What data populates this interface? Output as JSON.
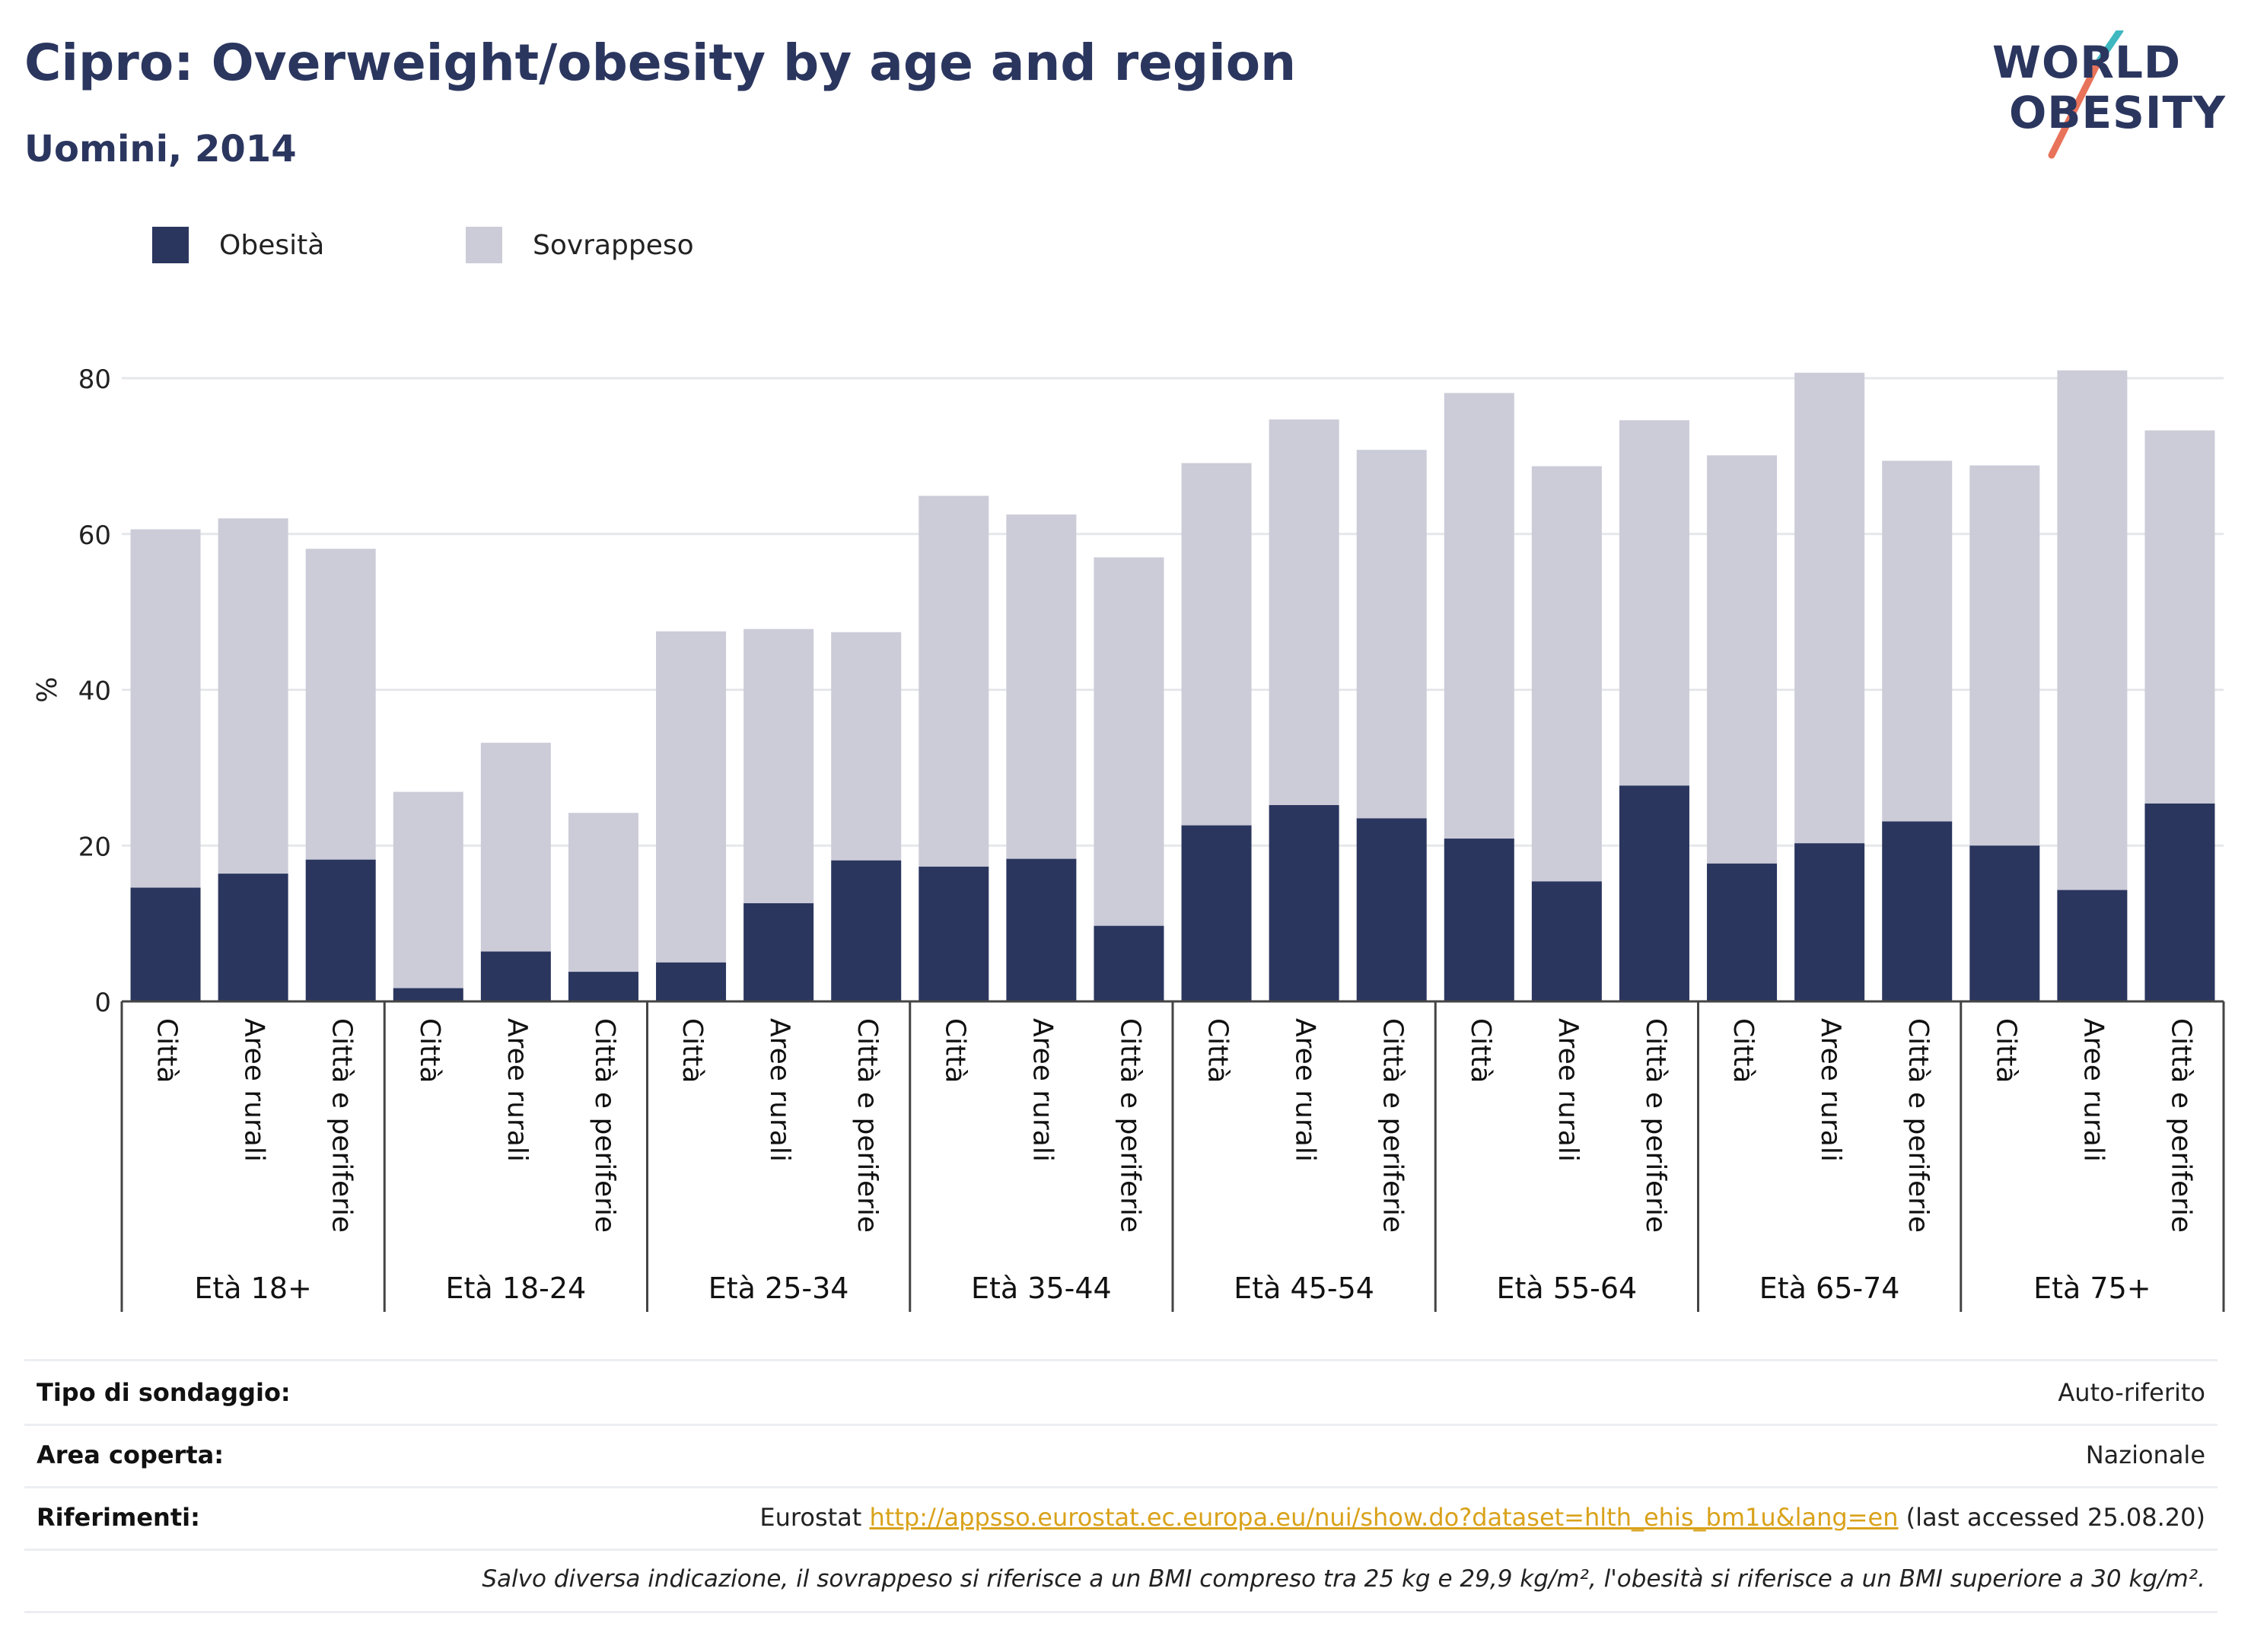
{
  "header": {
    "title": "Cipro: Overweight/obesity by age and region",
    "subtitle": "Uomini, 2014"
  },
  "logo": {
    "line1": "WORLD",
    "line2": "OBESITY",
    "colors": {
      "text": "#2b365f",
      "slash_top": "#3fb8c0",
      "slash_bottom": "#e8735a"
    }
  },
  "colors": {
    "obesity": "#2b365f",
    "overweight": "#cbccd8",
    "grid": "#e6e7eb",
    "axis": "#444444",
    "link": "#d9a21b"
  },
  "chart_data": {
    "type": "bar",
    "stacked": true,
    "ylabel": "%",
    "ylim": [
      0,
      90
    ],
    "yticks": [
      0,
      20,
      40,
      60,
      80
    ],
    "grid": true,
    "legend_position": "top-left",
    "groups": [
      "Età 18+",
      "Età 18-24",
      "Età 25-34",
      "Età 35-44",
      "Età 45-54",
      "Età 55-64",
      "Età 65-74",
      "Età 75+"
    ],
    "subcategories": [
      "Città",
      "Aree rurali",
      "Città e periferie"
    ],
    "series": [
      {
        "name": "Obesità",
        "values": [
          14.6,
          16.4,
          18.2,
          1.7,
          6.4,
          3.8,
          5.0,
          12.6,
          18.1,
          17.3,
          18.3,
          9.7,
          22.6,
          25.2,
          23.5,
          20.9,
          15.4,
          27.7,
          17.7,
          20.3,
          23.1,
          20.0,
          14.3,
          25.4
        ]
      },
      {
        "name": "Sovrappeso",
        "values": [
          46.0,
          45.6,
          39.9,
          25.2,
          26.8,
          20.4,
          42.5,
          35.2,
          29.3,
          47.6,
          44.2,
          47.3,
          46.5,
          49.5,
          47.3,
          57.2,
          53.3,
          46.9,
          52.4,
          60.4,
          46.3,
          48.8,
          66.7,
          47.9
        ]
      }
    ]
  },
  "info": {
    "survey_type_label": "Tipo di sondaggio:",
    "survey_type_value": "Auto-riferito",
    "coverage_label": "Area coperta:",
    "coverage_value": "Nazionale",
    "references_label": "Riferimenti:",
    "references_source": "Eurostat",
    "references_link": "http://appsso.eurostat.ec.europa.eu/nui/show.do?dataset=hlth_ehis_bm1u&lang=en",
    "references_accessed": "(last accessed 25.08.20)",
    "note": "Salvo diversa indicazione, il sovrappeso si riferisce a un BMI compreso tra 25 kg e 29,9 kg/m², l'obesità si riferisce a un BMI superiore a 30 kg/m²."
  }
}
